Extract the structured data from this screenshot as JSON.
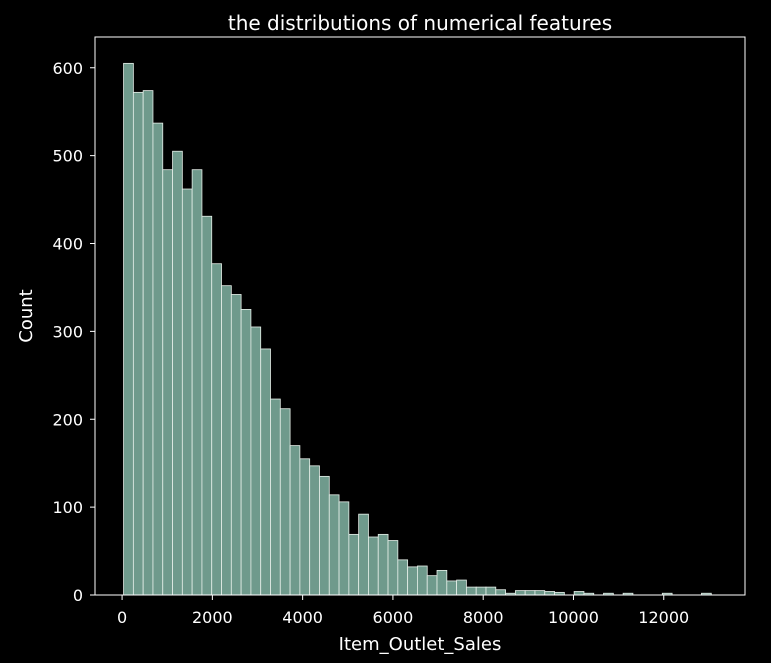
{
  "chart_data": {
    "type": "bar",
    "subtype": "histogram",
    "title": "the distributions of numerical features",
    "xlabel": "Item_Outlet_Sales",
    "ylabel": "Count",
    "xlim": [
      -600,
      13800
    ],
    "ylim": [
      0,
      635
    ],
    "xticks": [
      0,
      2000,
      4000,
      6000,
      8000,
      10000,
      12000
    ],
    "yticks": [
      0,
      100,
      200,
      300,
      400,
      500,
      600
    ],
    "bin_start": 33,
    "bin_width": 217,
    "values": [
      605,
      572,
      574,
      537,
      484,
      505,
      462,
      484,
      431,
      377,
      352,
      342,
      325,
      305,
      280,
      223,
      212,
      170,
      155,
      147,
      135,
      114,
      106,
      69,
      92,
      66,
      69,
      62,
      40,
      32,
      33,
      22,
      28,
      16,
      17,
      9,
      9,
      9,
      6,
      2,
      5,
      5,
      5,
      4,
      3,
      0,
      4,
      2,
      0,
      2,
      0,
      2,
      0,
      0,
      0,
      2,
      0,
      0,
      0,
      2
    ],
    "colors": {
      "background": "#000000",
      "bar_fill": "#6f9a8c",
      "bar_edge": "#e6efe9",
      "axes": "#ffffff",
      "text": "#ffffff"
    },
    "grid": false,
    "legend": "none"
  }
}
